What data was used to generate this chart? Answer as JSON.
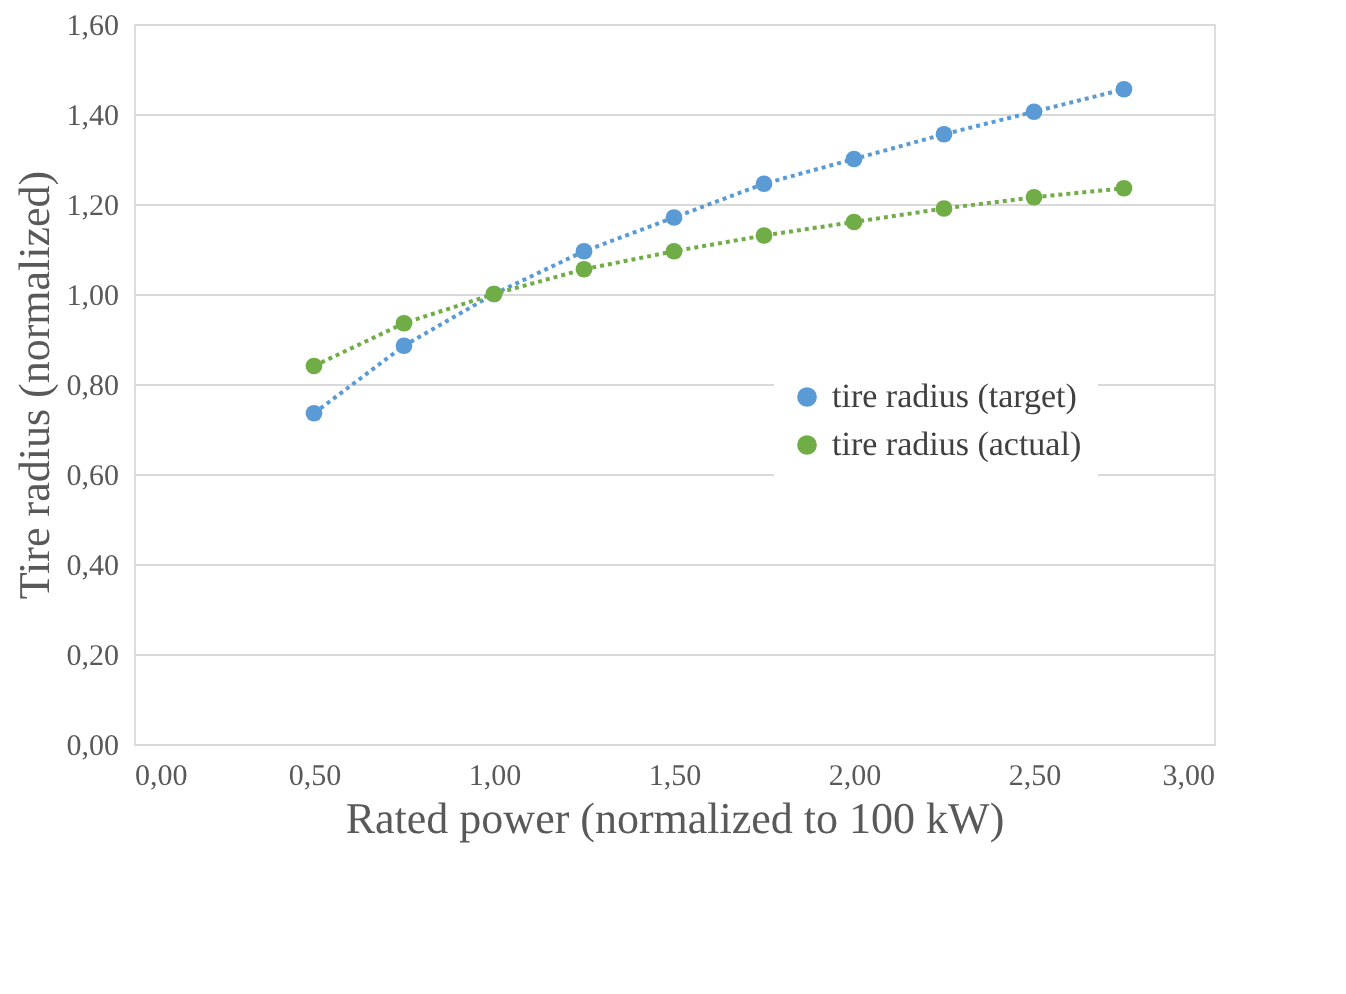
{
  "chart_data": {
    "type": "line",
    "xlabel": "Rated power (normalized to 100 kW)",
    "ylabel": "Tire radius (normalized)",
    "x": [
      0.5,
      0.75,
      1.0,
      1.25,
      1.5,
      1.75,
      2.0,
      2.25,
      2.5,
      2.75
    ],
    "series": [
      {
        "name": "tire radius (target)",
        "color": "#5b9bd5",
        "values": [
          0.735,
          0.885,
          1.0,
          1.095,
          1.17,
          1.245,
          1.3,
          1.355,
          1.405,
          1.455
        ]
      },
      {
        "name": "tire radius (actual)",
        "color": "#70ad47",
        "values": [
          0.84,
          0.935,
          1.0,
          1.055,
          1.095,
          1.13,
          1.16,
          1.19,
          1.215,
          1.235
        ]
      }
    ],
    "xlim": [
      0,
      3
    ],
    "ylim": [
      0,
      1.6
    ],
    "xticks": [
      {
        "value": 0,
        "label": "0,00"
      },
      {
        "value": 0.5,
        "label": "0,50"
      },
      {
        "value": 1,
        "label": "1,00"
      },
      {
        "value": 1.5,
        "label": "1,50"
      },
      {
        "value": 2,
        "label": "2,00"
      },
      {
        "value": 2.5,
        "label": "2,50"
      },
      {
        "value": 3,
        "label": "3,00"
      }
    ],
    "yticks": [
      {
        "value": 0,
        "label": "0,00"
      },
      {
        "value": 0.2,
        "label": "0,20"
      },
      {
        "value": 0.4,
        "label": "0,40"
      },
      {
        "value": 0.6,
        "label": "0,60"
      },
      {
        "value": 0.8,
        "label": "0,80"
      },
      {
        "value": 1,
        "label": "1,00"
      },
      {
        "value": 1.2,
        "label": "1,20"
      },
      {
        "value": 1.4,
        "label": "1,40"
      },
      {
        "value": 1.6,
        "label": "1,60"
      }
    ],
    "grid": "y",
    "legend": "right",
    "marker": "circle",
    "line_style": "dotted"
  }
}
